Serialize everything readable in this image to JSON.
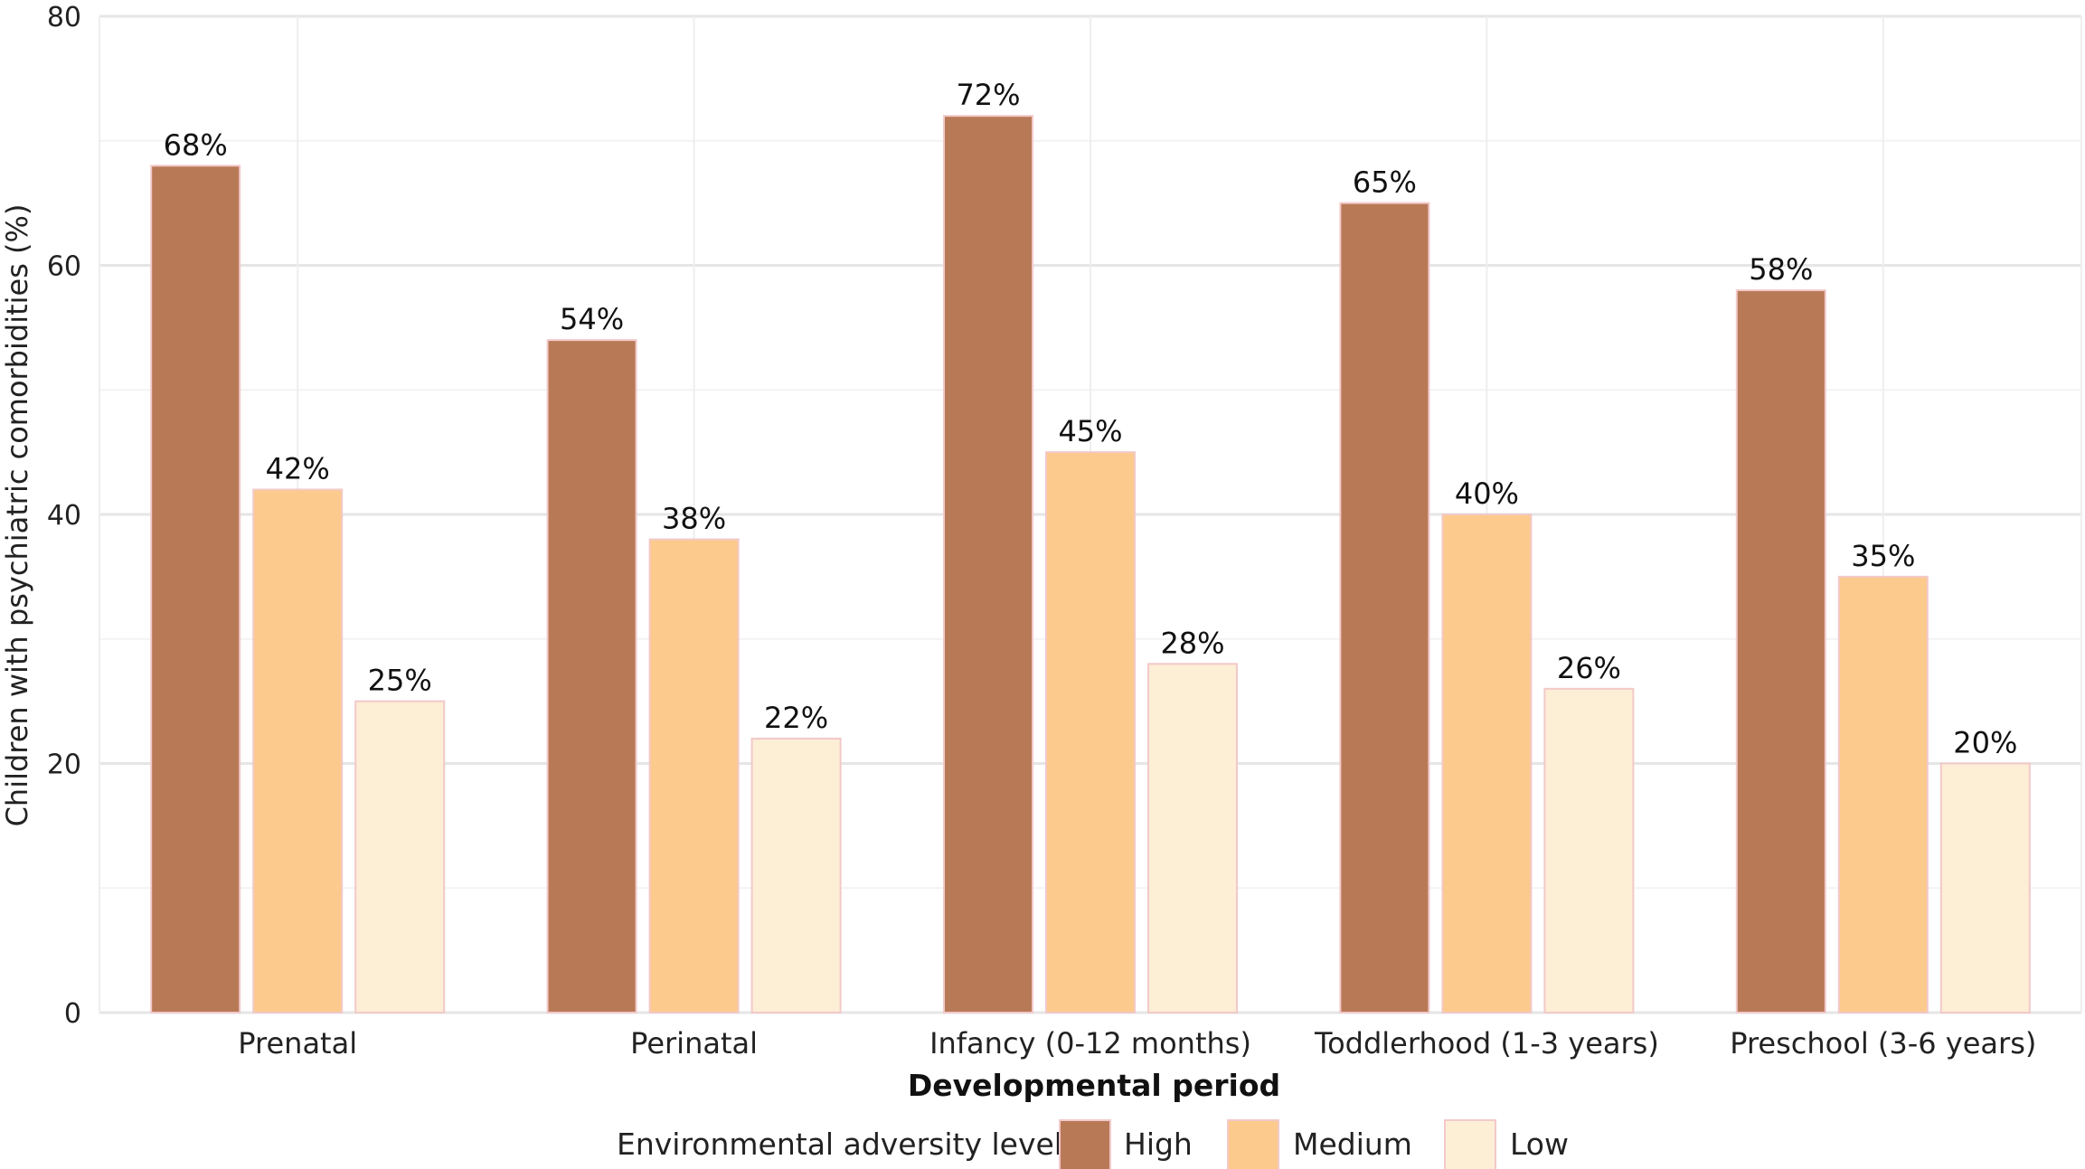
{
  "chart_data": {
    "type": "bar",
    "title": "",
    "xlabel": "Developmental period",
    "ylabel": "Children with psychiatric comorbidities (%)",
    "ylim": [
      0,
      80
    ],
    "yticks": [
      0,
      20,
      40,
      60,
      80
    ],
    "grid": true,
    "legend_position": "bottom",
    "legend_title": "Environmental adversity level",
    "categories": [
      "Prenatal",
      "Perinatal",
      "Infancy (0-12 months)",
      "Toddlerhood (1-3 years)",
      "Preschool (3-6 years)"
    ],
    "series": [
      {
        "name": "High",
        "color": "#b87956",
        "values": [
          68,
          54,
          72,
          65,
          58
        ],
        "labels": [
          "68%",
          "54%",
          "72%",
          "65%",
          "58%"
        ]
      },
      {
        "name": "Medium",
        "color": "#fcca8c",
        "values": [
          42,
          38,
          45,
          40,
          35
        ],
        "labels": [
          "42%",
          "38%",
          "45%",
          "40%",
          "35%"
        ]
      },
      {
        "name": "Low",
        "color": "#fdeed6",
        "values": [
          25,
          22,
          28,
          26,
          20
        ],
        "labels": [
          "25%",
          "22%",
          "28%",
          "26%",
          "20%"
        ]
      }
    ]
  }
}
